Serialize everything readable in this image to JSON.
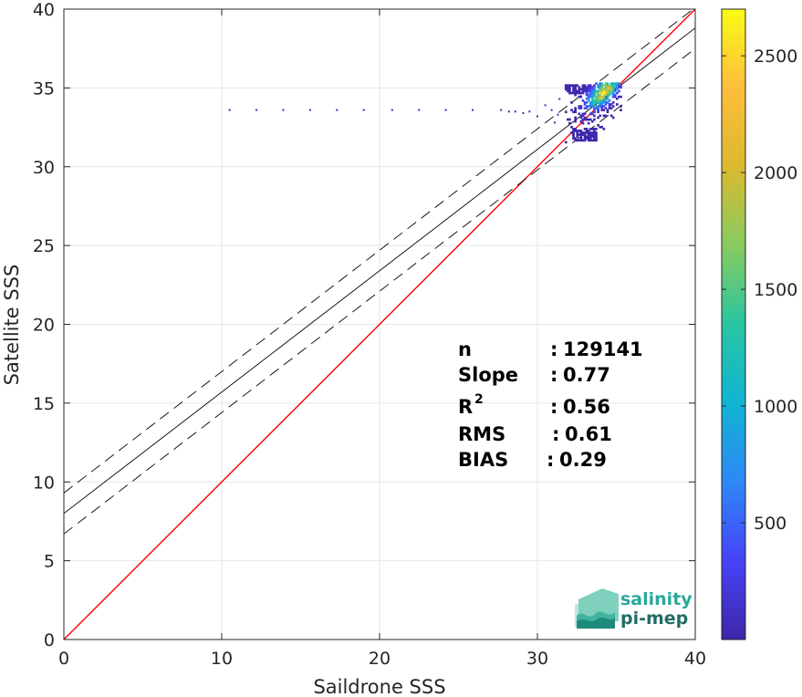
{
  "chart_data": {
    "type": "scatter",
    "subtype": "2d-density-scatter",
    "xlabel": "Saildrone SSS",
    "ylabel": "Satellite SSS",
    "xlim": [
      0,
      40
    ],
    "ylim": [
      0,
      40
    ],
    "x_ticks": [
      "0",
      "10",
      "20",
      "30",
      "40"
    ],
    "y_ticks": [
      "0",
      "5",
      "10",
      "15",
      "20",
      "25",
      "30",
      "35",
      "40"
    ],
    "grid": true,
    "reference_lines": [
      {
        "kind": "identity",
        "slope": 1,
        "intercept": 0,
        "color": "#ff0000",
        "style": "solid"
      },
      {
        "kind": "regression",
        "slope": 0.77,
        "intercept": 8.0,
        "color": "#000000",
        "style": "solid"
      },
      {
        "kind": "upper-bound",
        "slope": 0.77,
        "intercept": 9.3,
        "color": "#000000",
        "style": "dashed"
      },
      {
        "kind": "lower-bound",
        "slope": 0.77,
        "intercept": 6.7,
        "color": "#000000",
        "style": "dashed"
      }
    ],
    "density_cluster": {
      "x_range": [
        31.8,
        35.3
      ],
      "y_range": [
        31.5,
        35.3
      ],
      "peak": [
        34.2,
        34.7
      ],
      "peak_count": 2650
    },
    "sparse_points": [
      {
        "x": 10.5,
        "y": 33.6
      },
      {
        "x": 12.2,
        "y": 33.6
      },
      {
        "x": 13.9,
        "y": 33.6
      },
      {
        "x": 15.6,
        "y": 33.6
      },
      {
        "x": 17.3,
        "y": 33.6
      },
      {
        "x": 19.0,
        "y": 33.6
      },
      {
        "x": 20.8,
        "y": 33.6
      },
      {
        "x": 22.5,
        "y": 33.6
      },
      {
        "x": 24.2,
        "y": 33.6
      },
      {
        "x": 25.9,
        "y": 33.6
      },
      {
        "x": 27.7,
        "y": 33.6
      },
      {
        "x": 28.2,
        "y": 33.5
      },
      {
        "x": 28.6,
        "y": 33.5
      },
      {
        "x": 29.1,
        "y": 33.4
      },
      {
        "x": 29.5,
        "y": 33.5
      },
      {
        "x": 30.0,
        "y": 33.2
      },
      {
        "x": 30.5,
        "y": 33.9
      },
      {
        "x": 30.9,
        "y": 33.6
      },
      {
        "x": 31.1,
        "y": 32.8
      },
      {
        "x": 31.4,
        "y": 34.3
      },
      {
        "x": 31.3,
        "y": 33.3
      }
    ],
    "colorbar": {
      "ticks": [
        "500",
        "1000",
        "1500",
        "2000",
        "2500"
      ],
      "tick_values": [
        500,
        1000,
        1500,
        2000,
        2500
      ],
      "range": [
        0,
        2700
      ],
      "colormap": "parula",
      "colors": [
        "#3e26a8",
        "#4743f8",
        "#2e87f7",
        "#10b4d3",
        "#28c5a1",
        "#88cb60",
        "#dbb92f",
        "#fdbe3d",
        "#f9fb15"
      ]
    },
    "stats": [
      {
        "label": "n",
        "sep": ":",
        "value": "129141"
      },
      {
        "label": "Slope",
        "sep": ":",
        "value": "0.77"
      },
      {
        "label": "R",
        "sup": "2",
        "sep": ":",
        "value": "0.56"
      },
      {
        "label": "RMS",
        "sep": ":",
        "value": "0.61"
      },
      {
        "label": "BIAS",
        "sep": ":",
        "value": "0.29"
      }
    ]
  },
  "logo": {
    "line1": "salinity",
    "line2": "pi-mep",
    "text_color": "#2aa89a",
    "text_color_dark": "#1f6e66",
    "icon_colors": [
      "#bde8dc",
      "#7fd0bd",
      "#3fb39d",
      "#1e8a7c"
    ]
  }
}
